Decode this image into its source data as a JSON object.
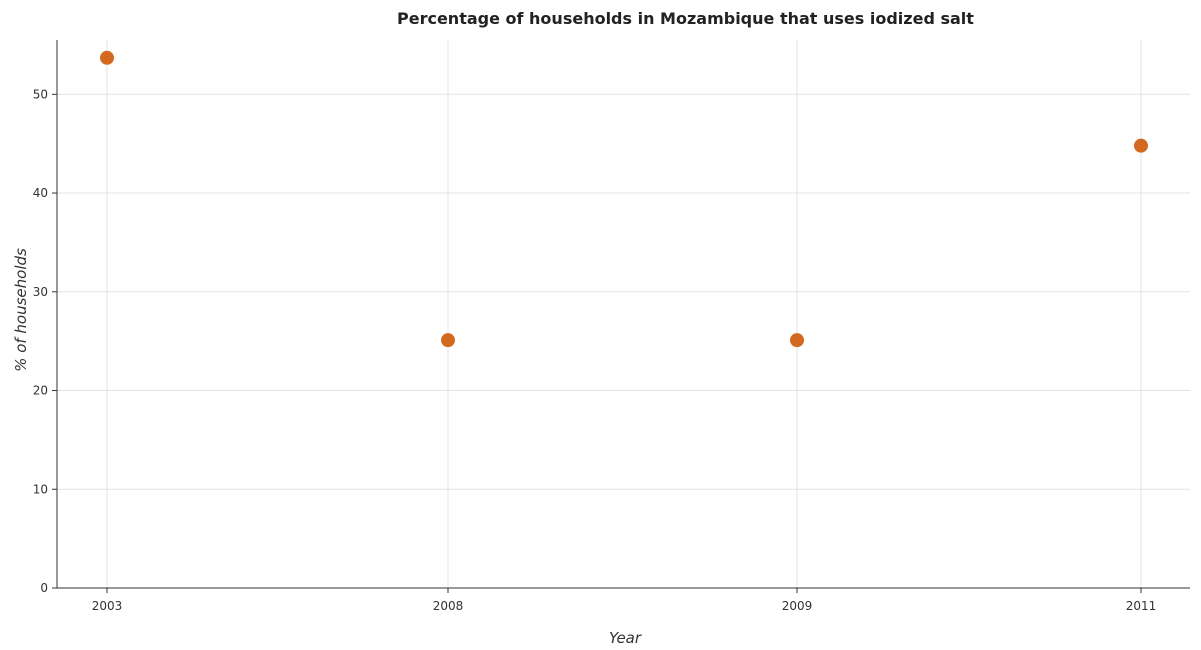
{
  "chart_data": {
    "type": "scatter",
    "title": "Percentage of households in Mozambique that uses iodized salt",
    "xlabel": "Year",
    "ylabel": "% of households",
    "categories": [
      "2003",
      "2008",
      "2009",
      "2011"
    ],
    "values": [
      53.7,
      25.1,
      25.1,
      44.8
    ],
    "ylim": [
      0,
      55.5
    ],
    "yticks": [
      0,
      10,
      20,
      30,
      40,
      50
    ],
    "ytick_labels": [
      "0",
      "10",
      "20",
      "30",
      "40",
      "50"
    ],
    "grid": true,
    "marker_color": "#d2691e"
  }
}
